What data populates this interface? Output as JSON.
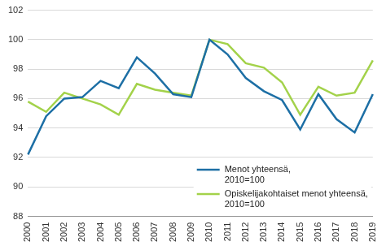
{
  "chart_data": {
    "type": "line",
    "categories": [
      "2000",
      "2001",
      "2002",
      "2003",
      "2004",
      "2005",
      "2006",
      "2007",
      "2008",
      "2009",
      "2010",
      "2011",
      "2012",
      "2013",
      "2014",
      "2015",
      "2016",
      "2017",
      "2018",
      "2019"
    ],
    "series": [
      {
        "name": "Menot yhteensä, 2010=100",
        "color": "#1d6fa5",
        "values": [
          92.2,
          94.8,
          96.0,
          96.1,
          97.2,
          96.7,
          98.8,
          97.7,
          96.3,
          96.1,
          100,
          99.0,
          97.4,
          96.5,
          95.9,
          93.9,
          96.3,
          94.6,
          93.7,
          96.3
        ]
      },
      {
        "name": "Opiskelijakohtaiset menot yhteensä, 2010=100",
        "color": "#a3d24a",
        "values": [
          95.8,
          95.1,
          96.4,
          96.0,
          95.6,
          94.9,
          97.0,
          96.6,
          96.4,
          96.2,
          100,
          99.7,
          98.4,
          98.1,
          97.1,
          94.9,
          96.8,
          96.2,
          96.4,
          98.6
        ]
      }
    ],
    "ylim": [
      88,
      102
    ],
    "yticks": [
      88,
      90,
      92,
      94,
      96,
      98,
      100,
      102
    ],
    "grid": true,
    "legend": "lower right"
  }
}
